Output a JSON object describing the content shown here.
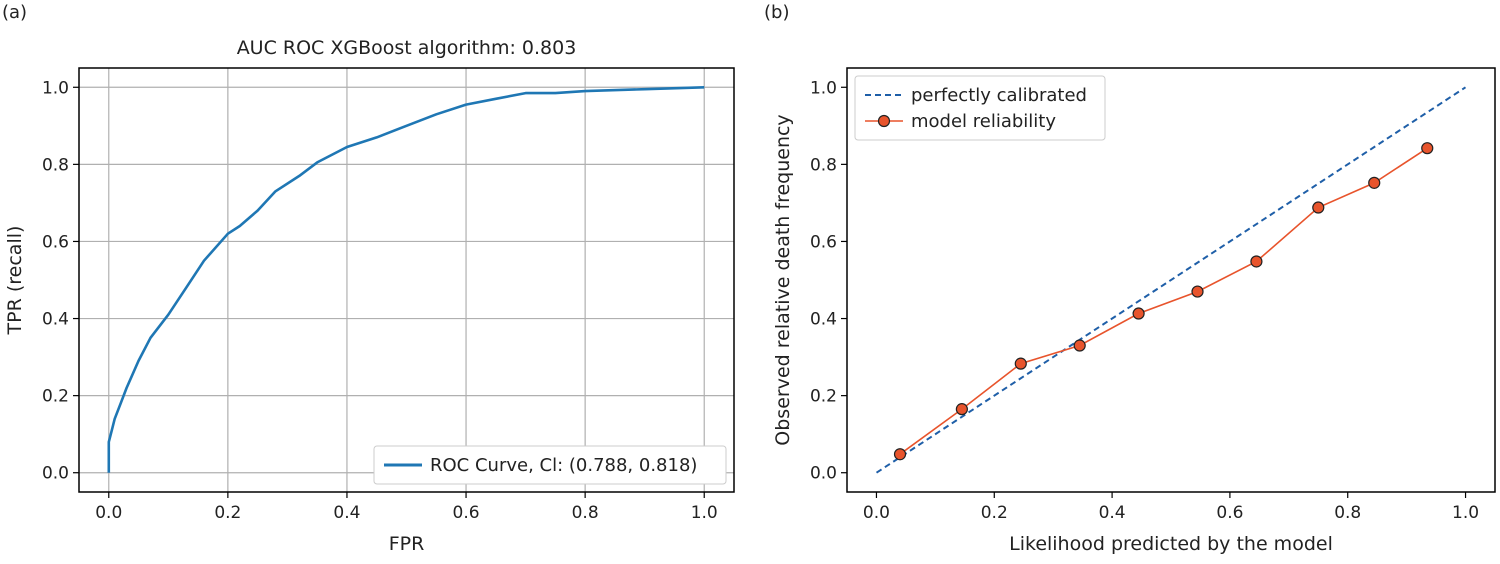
{
  "panels": {
    "a": {
      "tag": "(a)"
    },
    "b": {
      "tag": "(b)"
    }
  },
  "chart_data": [
    {
      "type": "line",
      "title": "AUC ROC XGBoost algorithm: 0.803",
      "xlabel": "FPR",
      "ylabel": "TPR (recall)",
      "xlim": [
        -0.05,
        1.05
      ],
      "ylim": [
        -0.05,
        1.05
      ],
      "xticks": [
        "0.0",
        "0.2",
        "0.4",
        "0.6",
        "0.8",
        "1.0"
      ],
      "yticks": [
        "0.0",
        "0.2",
        "0.4",
        "0.6",
        "0.8",
        "1.0"
      ],
      "grid": true,
      "legend_position": "lower-right",
      "series": [
        {
          "name": "ROC Curve, Cl: (0.788, 0.818)",
          "color": "#1f77b4",
          "x": [
            0.0,
            0.0,
            0.005,
            0.01,
            0.02,
            0.03,
            0.05,
            0.07,
            0.1,
            0.13,
            0.16,
            0.2,
            0.22,
            0.25,
            0.28,
            0.32,
            0.35,
            0.4,
            0.45,
            0.5,
            0.55,
            0.6,
            0.65,
            0.7,
            0.75,
            0.8,
            0.9,
            1.0
          ],
          "y": [
            0.0,
            0.08,
            0.11,
            0.14,
            0.18,
            0.22,
            0.29,
            0.35,
            0.41,
            0.48,
            0.55,
            0.62,
            0.64,
            0.68,
            0.73,
            0.77,
            0.805,
            0.845,
            0.87,
            0.9,
            0.93,
            0.955,
            0.97,
            0.985,
            0.985,
            0.99,
            0.995,
            1.0
          ]
        }
      ]
    },
    {
      "type": "line",
      "title": "",
      "xlabel": "Likelihood predicted by the model",
      "ylabel": "Observed relative death frequency",
      "xlim": [
        -0.05,
        1.05
      ],
      "ylim": [
        -0.05,
        1.05
      ],
      "xticks": [
        "0.0",
        "0.2",
        "0.4",
        "0.6",
        "0.8",
        "1.0"
      ],
      "yticks": [
        "0.0",
        "0.2",
        "0.4",
        "0.6",
        "0.8",
        "1.0"
      ],
      "grid": false,
      "legend_position": "top-left",
      "series": [
        {
          "name": "perfectly calibrated",
          "color": "#1f5fa8",
          "style": "dashed",
          "x": [
            0.0,
            1.0
          ],
          "y": [
            0.0,
            1.0
          ]
        },
        {
          "name": "model reliability",
          "color": "#e8542c",
          "style": "line-marker",
          "x": [
            0.04,
            0.145,
            0.245,
            0.345,
            0.445,
            0.545,
            0.645,
            0.75,
            0.845,
            0.935
          ],
          "y": [
            0.048,
            0.165,
            0.283,
            0.33,
            0.413,
            0.47,
            0.548,
            0.688,
            0.752,
            0.842
          ]
        }
      ]
    }
  ]
}
